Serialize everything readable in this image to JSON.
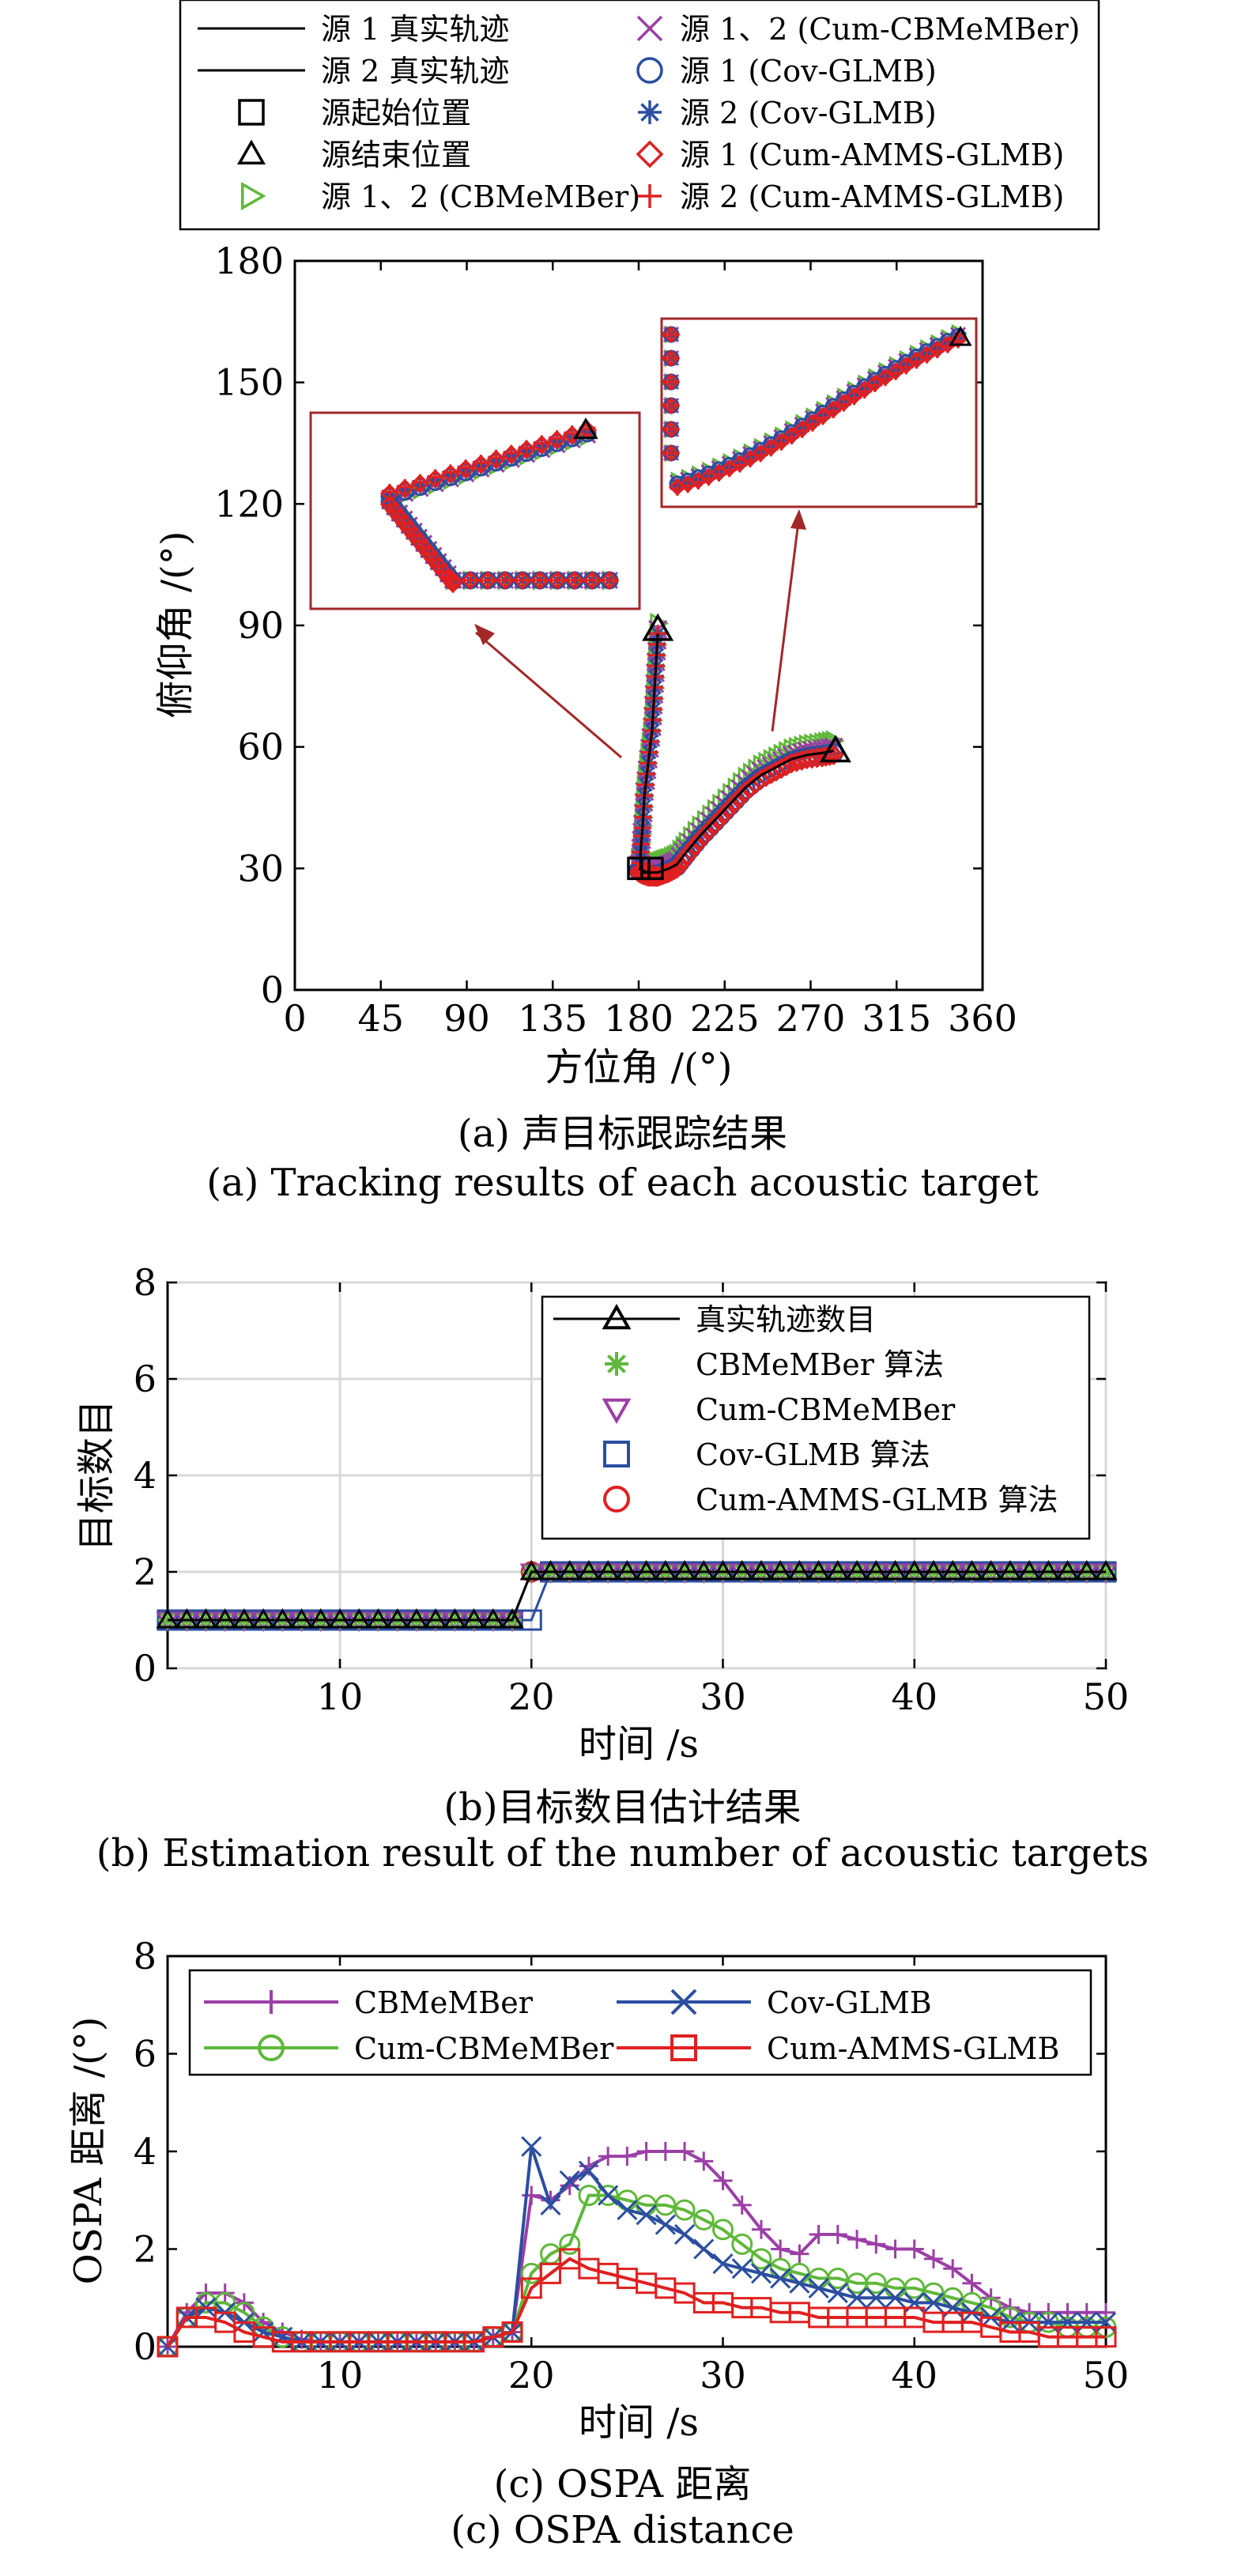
{
  "captions": {
    "a_cn": "(a) 声目标跟踪结果",
    "a_en": "(a) Tracking results of each acoustic target",
    "b_cn": "(b)目标数目估计结果",
    "b_en": "(b) Estimation result of the number of acoustic targets",
    "c_cn": "(c) OSPA 距离",
    "c_en": "(c) OSPA distance"
  },
  "chart_data": [
    {
      "type": "scatter",
      "xlabel": "方位角 /(°)",
      "ylabel": "俯仰角 /(°)",
      "xlim": [
        0,
        360
      ],
      "ylim": [
        0,
        180
      ],
      "xticks": [
        0,
        45,
        90,
        135,
        180,
        225,
        270,
        315,
        360
      ],
      "yticks": [
        0,
        30,
        60,
        90,
        120,
        150,
        180
      ],
      "grid": false,
      "legend": {
        "placement": "top",
        "entries": [
          {
            "label": "源 1 真实轨迹",
            "marker": "line",
            "color": "#000000"
          },
          {
            "label": "源 2 真实轨迹",
            "marker": "line",
            "color": "#000000"
          },
          {
            "label": "源起始位置",
            "marker": "square",
            "color": "#000000"
          },
          {
            "label": "源结束位置",
            "marker": "triangle",
            "color": "#000000"
          },
          {
            "label": "源 1、2 (CBMeMBer)",
            "marker": "triangle-right",
            "color": "#5fb83a"
          },
          {
            "label": "源 1、2 (Cum-CBMeMBer)",
            "marker": "x",
            "color": "#9b3fa6"
          },
          {
            "label": "源 1 (Cov-GLMB)",
            "marker": "circle",
            "color": "#2b4ea0"
          },
          {
            "label": "源 2 (Cov-GLMB)",
            "marker": "asterisk",
            "color": "#2b4ea0"
          },
          {
            "label": "源 1 (Cum-AMMS-GLMB)",
            "marker": "diamond",
            "color": "#e02020"
          },
          {
            "label": "源 2 (Cum-AMMS-GLMB)",
            "marker": "plus",
            "color": "#e02020"
          }
        ]
      },
      "series": [
        {
          "name": "源 1 真实轨迹",
          "x": [
            180,
            182,
            185,
            188,
            190,
            193,
            196,
            200,
            205,
            212,
            220,
            228,
            236,
            244,
            252,
            260,
            268,
            276,
            282
          ],
          "y": [
            30,
            29.5,
            29,
            29,
            29,
            29.5,
            30,
            31,
            34,
            38,
            42,
            46,
            50,
            53,
            55,
            57,
            58,
            58.5,
            59
          ]
        },
        {
          "name": "源 2 真实轨迹",
          "x": [
            190,
            189,
            188,
            187,
            185,
            183,
            182,
            181,
            181,
            182,
            183,
            185,
            187
          ],
          "y": [
            88,
            80,
            72,
            64,
            56,
            48,
            40,
            34,
            30,
            29,
            29,
            29,
            29
          ]
        }
      ],
      "start_positions": [
        [
          180,
          30
        ],
        [
          187,
          30
        ]
      ],
      "end_positions": [
        [
          190,
          89
        ],
        [
          283,
          59
        ]
      ],
      "insets": [
        {
          "note": "zoom of source 2 start region",
          "arrow_to": [
            179,
            60
          ]
        },
        {
          "note": "zoom of source 1 start region",
          "arrow_to": [
            236,
            64
          ]
        }
      ]
    },
    {
      "type": "line",
      "xlabel": "时间 /s",
      "ylabel": "目标数目",
      "xlim": [
        1,
        50
      ],
      "ylim": [
        0,
        8
      ],
      "xticks": [
        10,
        20,
        30,
        40,
        50
      ],
      "yticks": [
        0,
        2,
        4,
        6,
        8
      ],
      "grid": true,
      "legend": {
        "placement": "right"
      },
      "x": [
        1,
        2,
        3,
        4,
        5,
        6,
        7,
        8,
        9,
        10,
        11,
        12,
        13,
        14,
        15,
        16,
        17,
        18,
        19,
        20,
        21,
        22,
        23,
        24,
        25,
        26,
        27,
        28,
        29,
        30,
        31,
        32,
        33,
        34,
        35,
        36,
        37,
        38,
        39,
        40,
        41,
        42,
        43,
        44,
        45,
        46,
        47,
        48,
        49,
        50
      ],
      "series": [
        {
          "name": "真实轨迹数目",
          "color": "#000000",
          "marker": "triangle",
          "values": [
            1,
            1,
            1,
            1,
            1,
            1,
            1,
            1,
            1,
            1,
            1,
            1,
            1,
            1,
            1,
            1,
            1,
            1,
            1,
            2,
            2,
            2,
            2,
            2,
            2,
            2,
            2,
            2,
            2,
            2,
            2,
            2,
            2,
            2,
            2,
            2,
            2,
            2,
            2,
            2,
            2,
            2,
            2,
            2,
            2,
            2,
            2,
            2,
            2,
            2
          ]
        },
        {
          "name": "CBMeMBer 算法",
          "color": "#5fb83a",
          "marker": "asterisk",
          "values": [
            1,
            1,
            1,
            1,
            1,
            1,
            1,
            1,
            1,
            1,
            1,
            1,
            1,
            1,
            1,
            1,
            1,
            1,
            1,
            2,
            2,
            2,
            2,
            2,
            2,
            2,
            2,
            2,
            2,
            2,
            2,
            2,
            2,
            2,
            2,
            2,
            2,
            2,
            2,
            2,
            2,
            2,
            2,
            2,
            2,
            2,
            2,
            2,
            2,
            2
          ]
        },
        {
          "name": "Cum-CBMeMBer",
          "color": "#9b3fa6",
          "marker": "triangle-down",
          "values": [
            1,
            1,
            1,
            1,
            1,
            1,
            1,
            1,
            1,
            1,
            1,
            1,
            1,
            1,
            1,
            1,
            1,
            1,
            1,
            2,
            2,
            2,
            2,
            2,
            2,
            2,
            2,
            2,
            2,
            2,
            2,
            2,
            2,
            2,
            2,
            2,
            2,
            2,
            2,
            2,
            2,
            2,
            2,
            2,
            2,
            2,
            2,
            2,
            2,
            2
          ]
        },
        {
          "name": "Cov-GLMB 算法",
          "color": "#2b4ea0",
          "marker": "square",
          "values": [
            1,
            1,
            1,
            1,
            1,
            1,
            1,
            1,
            1,
            1,
            1,
            1,
            1,
            1,
            1,
            1,
            1,
            1,
            1,
            1,
            2,
            2,
            2,
            2,
            2,
            2,
            2,
            2,
            2,
            2,
            2,
            2,
            2,
            2,
            2,
            2,
            2,
            2,
            2,
            2,
            2,
            2,
            2,
            2,
            2,
            2,
            2,
            2,
            2,
            2
          ]
        },
        {
          "name": "Cum-AMMS-GLMB 算法",
          "color": "#e02020",
          "marker": "circle",
          "values": [
            1,
            1,
            1,
            1,
            1,
            1,
            1,
            1,
            1,
            1,
            1,
            1,
            1,
            1,
            1,
            1,
            1,
            1,
            1,
            2,
            2,
            2,
            2,
            2,
            2,
            2,
            2,
            2,
            2,
            2,
            2,
            2,
            2,
            2,
            2,
            2,
            2,
            2,
            2,
            2,
            2,
            2,
            2,
            2,
            2,
            2,
            2,
            2,
            2,
            2
          ]
        }
      ]
    },
    {
      "type": "line",
      "xlabel": "时间 /s",
      "ylabel": "OSPA 距离 /(°)",
      "xlim": [
        1,
        50
      ],
      "ylim": [
        0,
        8
      ],
      "xticks": [
        10,
        20,
        30,
        40,
        50
      ],
      "yticks": [
        0,
        2,
        4,
        6,
        8
      ],
      "grid": false,
      "legend": {
        "placement": "top"
      },
      "x": [
        1,
        2,
        3,
        4,
        5,
        6,
        7,
        8,
        9,
        10,
        11,
        12,
        13,
        14,
        15,
        16,
        17,
        18,
        19,
        20,
        21,
        22,
        23,
        24,
        25,
        26,
        27,
        28,
        29,
        30,
        31,
        32,
        33,
        34,
        35,
        36,
        37,
        38,
        39,
        40,
        41,
        42,
        43,
        44,
        45,
        46,
        47,
        48,
        49,
        50
      ],
      "series": [
        {
          "name": "CBMeMBer",
          "color": "#9b3fa6",
          "marker": "plus",
          "values": [
            0,
            0.7,
            1.1,
            1.1,
            0.9,
            0.5,
            0.3,
            0.15,
            0.1,
            0.1,
            0.1,
            0.1,
            0.1,
            0.1,
            0.1,
            0.1,
            0.1,
            0.2,
            0.3,
            3.1,
            3.0,
            3.3,
            3.7,
            3.9,
            3.9,
            4.0,
            4.0,
            4.0,
            3.8,
            3.4,
            2.9,
            2.4,
            2.0,
            1.9,
            2.3,
            2.3,
            2.2,
            2.1,
            2.0,
            2.0,
            1.8,
            1.6,
            1.3,
            1.0,
            0.8,
            0.7,
            0.7,
            0.7,
            0.7,
            0.7
          ]
        },
        {
          "name": "Cum-CBMeMBer",
          "color": "#5fb83a",
          "marker": "circle",
          "values": [
            0,
            0.6,
            0.9,
            0.9,
            0.7,
            0.4,
            0.2,
            0.1,
            0.1,
            0.1,
            0.1,
            0.1,
            0.1,
            0.1,
            0.1,
            0.1,
            0.1,
            0.2,
            0.3,
            1.5,
            1.9,
            2.1,
            3.1,
            3.1,
            3.0,
            2.9,
            2.9,
            2.8,
            2.6,
            2.4,
            2.1,
            1.8,
            1.6,
            1.5,
            1.4,
            1.4,
            1.3,
            1.3,
            1.2,
            1.2,
            1.1,
            1.0,
            0.9,
            0.8,
            0.6,
            0.5,
            0.5,
            0.4,
            0.4,
            0.4
          ]
        },
        {
          "name": "Cov-GLMB",
          "color": "#2b4ea0",
          "marker": "x",
          "values": [
            0,
            0.6,
            0.8,
            0.7,
            0.5,
            0.3,
            0.2,
            0.1,
            0.1,
            0.1,
            0.1,
            0.1,
            0.1,
            0.1,
            0.1,
            0.1,
            0.1,
            0.2,
            0.3,
            4.1,
            2.9,
            3.4,
            3.6,
            3.1,
            2.8,
            2.7,
            2.5,
            2.3,
            2.0,
            1.7,
            1.6,
            1.5,
            1.4,
            1.3,
            1.2,
            1.1,
            1.0,
            1.0,
            1.0,
            0.9,
            0.9,
            0.8,
            0.7,
            0.6,
            0.5,
            0.5,
            0.5,
            0.5,
            0.5,
            0.5
          ]
        },
        {
          "name": "Cum-AMMS-GLMB",
          "color": "#e02020",
          "marker": "square",
          "values": [
            0,
            0.6,
            0.6,
            0.5,
            0.3,
            0.2,
            0.1,
            0.1,
            0.1,
            0.1,
            0.1,
            0.1,
            0.1,
            0.1,
            0.1,
            0.1,
            0.1,
            0.2,
            0.3,
            1.2,
            1.5,
            1.8,
            1.6,
            1.5,
            1.4,
            1.3,
            1.2,
            1.1,
            0.9,
            0.9,
            0.8,
            0.8,
            0.7,
            0.7,
            0.6,
            0.6,
            0.6,
            0.6,
            0.6,
            0.6,
            0.5,
            0.5,
            0.5,
            0.4,
            0.3,
            0.3,
            0.2,
            0.2,
            0.2,
            0.2
          ]
        }
      ]
    }
  ]
}
